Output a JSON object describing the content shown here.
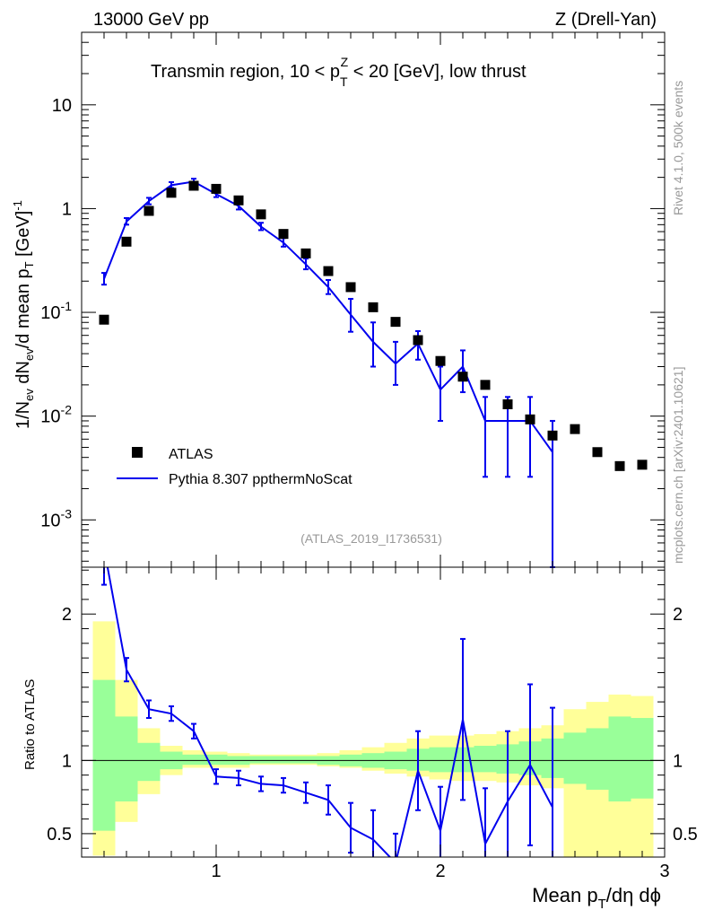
{
  "header": {
    "left": "13000 GeV pp",
    "right": "Z (Drell-Yan)",
    "title": "Transmin region, 10 < p",
    "title_sup": "Z",
    "title_sub": "T",
    "title_tail": " < 20 [GeV], low thrust"
  },
  "side": {
    "rivet": "Rivet 4.1.0,  500k events",
    "mcplots": "mcplots.cern.ch [arXiv:2401.10621]"
  },
  "analysis_id": "(ATLAS_2019_I1736531)",
  "legend": {
    "data_label": "ATLAS",
    "mc_label": "Pythia 8.307 ppthermNoScat"
  },
  "colors": {
    "mc": "#0000ee",
    "band_inner": "#99ff99",
    "band_outer": "#ffff99",
    "data": "#000000"
  },
  "chart_data": [
    {
      "type": "scatter",
      "panel": "main",
      "yscale": "log",
      "ylabel": "1/N_ev dN_ev/d mean p_T [GeV]^-1",
      "xlim": [
        0.4,
        3.0
      ],
      "ylim": [
        0.00035,
        50
      ],
      "y_ticks": [
        0.001,
        0.01,
        0.1,
        1,
        10
      ],
      "y_tick_labels": [
        "10^-3",
        "10^-2",
        "10^-1",
        "1",
        "10"
      ],
      "x": [
        0.5,
        0.6,
        0.7,
        0.8,
        0.9,
        1.0,
        1.1,
        1.2,
        1.3,
        1.4,
        1.5,
        1.6,
        1.7,
        1.8,
        1.9,
        2.0,
        2.1,
        2.2,
        2.3,
        2.4,
        2.5,
        2.6,
        2.7,
        2.8,
        2.9
      ],
      "series": [
        {
          "name": "ATLAS",
          "values": [
            0.085,
            0.48,
            0.95,
            1.42,
            1.66,
            1.55,
            1.2,
            0.88,
            0.57,
            0.37,
            0.25,
            0.175,
            0.112,
            0.081,
            0.054,
            0.034,
            0.024,
            0.02,
            0.013,
            0.0093,
            0.0065,
            0.0075,
            0.0045,
            0.0033,
            0.0034
          ]
        },
        {
          "name": "Pythia 8.307 ppthermNoScat",
          "values": [
            0.21,
            0.75,
            1.18,
            1.68,
            1.82,
            1.38,
            1.06,
            0.67,
            0.47,
            0.29,
            0.175,
            0.095,
            0.052,
            0.032,
            0.05,
            0.018,
            0.03,
            0.009,
            0.009,
            0.009,
            0.0045
          ],
          "err_low": [
            0.025,
            0.05,
            0.08,
            0.1,
            0.1,
            0.09,
            0.08,
            0.05,
            0.04,
            0.03,
            0.025,
            0.03,
            0.022,
            0.012,
            0.015,
            0.009,
            0.013,
            0.0064,
            0.0064,
            0.0064,
            0.0044
          ],
          "err_high": [
            0.03,
            0.06,
            0.09,
            0.12,
            0.12,
            0.1,
            0.09,
            0.06,
            0.05,
            0.04,
            0.03,
            0.04,
            0.028,
            0.02,
            0.016,
            0.012,
            0.013,
            0.0063,
            0.0063,
            0.0063,
            0.0045
          ]
        }
      ]
    },
    {
      "type": "line",
      "panel": "ratio",
      "ylabel": "Ratio to ATLAS",
      "xlabel": "Mean p_T/dη dϕ",
      "xlim": [
        0.4,
        3.0
      ],
      "ylim": [
        0.34,
        2.32
      ],
      "x_ticks": [
        1,
        2,
        3
      ],
      "y_ticks": [
        0.5,
        1,
        2
      ],
      "x": [
        0.5,
        0.6,
        0.7,
        0.8,
        0.9,
        1.0,
        1.1,
        1.2,
        1.3,
        1.4,
        1.5,
        1.6,
        1.7,
        1.8,
        1.9,
        2.0,
        2.1,
        2.2,
        2.3,
        2.4,
        2.5
      ],
      "series": [
        {
          "name": "Pythia 8.307 ppthermNoScat / ATLAS",
          "values": [
            2.45,
            1.62,
            1.35,
            1.32,
            1.2,
            0.89,
            0.88,
            0.84,
            0.83,
            0.78,
            0.73,
            0.54,
            0.46,
            0.3,
            0.93,
            0.52,
            1.28,
            0.43,
            0.72,
            0.97,
            0.68
          ],
          "err": [
            0.25,
            0.08,
            0.06,
            0.05,
            0.05,
            0.05,
            0.05,
            0.05,
            0.05,
            0.07,
            0.1,
            0.17,
            0.2,
            0.2,
            0.27,
            0.3,
            0.55,
            0.38,
            0.48,
            0.55,
            0.68
          ]
        }
      ],
      "band_inner": {
        "low": [
          0.52,
          0.72,
          0.86,
          0.94,
          0.97,
          0.97,
          0.97,
          0.98,
          0.98,
          0.98,
          0.97,
          0.96,
          0.95,
          0.94,
          0.93,
          0.92,
          0.92,
          0.92,
          0.91,
          0.9,
          0.88,
          0.84,
          0.8,
          0.72,
          0.74
        ],
        "high": [
          1.55,
          1.3,
          1.12,
          1.06,
          1.04,
          1.04,
          1.03,
          1.03,
          1.03,
          1.03,
          1.03,
          1.04,
          1.05,
          1.06,
          1.08,
          1.09,
          1.09,
          1.1,
          1.11,
          1.13,
          1.15,
          1.19,
          1.22,
          1.3,
          1.29
        ]
      },
      "band_outer": {
        "low": [
          0.35,
          0.58,
          0.77,
          0.9,
          0.95,
          0.95,
          0.95,
          0.97,
          0.97,
          0.97,
          0.96,
          0.95,
          0.93,
          0.91,
          0.89,
          0.87,
          0.86,
          0.86,
          0.85,
          0.83,
          0.81,
          0.34,
          0.34,
          0.34,
          0.34
        ],
        "high": [
          1.95,
          1.55,
          1.22,
          1.1,
          1.07,
          1.06,
          1.05,
          1.04,
          1.04,
          1.04,
          1.05,
          1.07,
          1.09,
          1.12,
          1.15,
          1.17,
          1.17,
          1.18,
          1.2,
          1.22,
          1.24,
          1.35,
          1.4,
          1.45,
          1.44
        ]
      }
    }
  ]
}
